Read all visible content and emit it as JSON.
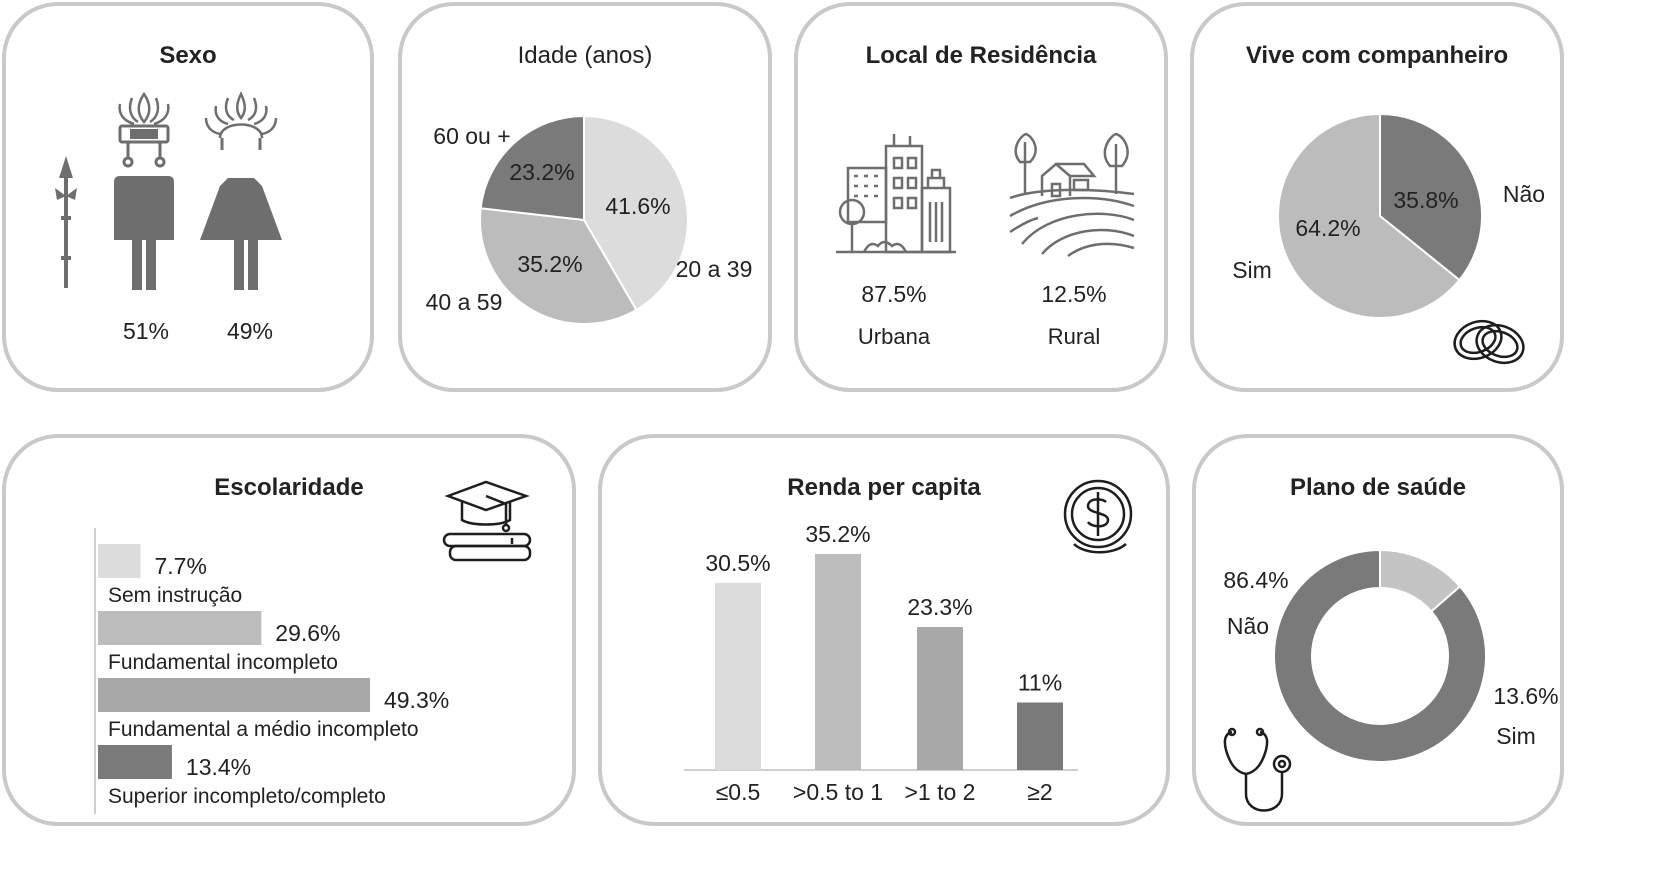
{
  "sexo": {
    "title": "Sexo",
    "men_pct": "51%",
    "women_pct": "49%",
    "chart_data": {
      "type": "table",
      "title": "Sexo",
      "categories": [
        "Men",
        "Women"
      ],
      "values": [
        51,
        49
      ]
    }
  },
  "idade": {
    "title": "Idade (anos)",
    "chart_data": {
      "type": "pie",
      "title": "Idade (anos)",
      "categories": [
        "20 a 39",
        "40 a 59",
        "60 ou +"
      ],
      "values": [
        41.6,
        35.2,
        23.2
      ],
      "value_labels": [
        "41.6%",
        "35.2%",
        "23.2%"
      ],
      "colors": [
        "#dcdcdc",
        "#bcbcbc",
        "#7a7a7a"
      ]
    }
  },
  "residencia": {
    "title": "Local de Residência",
    "chart_data": {
      "type": "table",
      "title": "Local de Residência",
      "categories": [
        "Urbana",
        "Rural"
      ],
      "values": [
        87.5,
        12.5
      ],
      "value_labels": [
        "87.5%",
        "12.5%"
      ]
    }
  },
  "companheiro": {
    "title": "Vive com companheiro",
    "chart_data": {
      "type": "pie",
      "title": "Vive com companheiro",
      "categories": [
        "Não",
        "Sim"
      ],
      "values": [
        35.8,
        64.2
      ],
      "value_labels": [
        "35.8%",
        "64.2%"
      ],
      "colors": [
        "#7a7a7a",
        "#bcbcbc"
      ]
    }
  },
  "escolaridade": {
    "title": "Escolaridade",
    "chart_data": {
      "type": "bar",
      "orientation": "horizontal",
      "title": "Escolaridade",
      "categories": [
        "Sem instrução",
        "Fundamental incompleto",
        "Fundamental  a médio incompleto",
        "Superior incompleto/completo"
      ],
      "values": [
        7.7,
        29.6,
        49.3,
        13.4
      ],
      "value_labels": [
        "7.7%",
        "29.6%",
        "49.3%",
        "13.4%"
      ],
      "colors": [
        "#dcdcdc",
        "#bdbdbd",
        "#a8a8a8",
        "#7a7a7a"
      ],
      "xlim": [
        0,
        60
      ]
    }
  },
  "renda": {
    "title": "Renda per capita",
    "chart_data": {
      "type": "bar",
      "title": "Renda per capita",
      "categories": [
        "≤0.5",
        ">0.5 to 1",
        ">1 to 2",
        "≥2"
      ],
      "values": [
        30.5,
        35.2,
        23.3,
        11
      ],
      "value_labels": [
        "30.5%",
        "35.2%",
        "23.3%",
        "11%"
      ],
      "colors": [
        "#dcdcdc",
        "#bdbdbd",
        "#a8a8a8",
        "#7a7a7a"
      ],
      "ylim": [
        0,
        40
      ]
    }
  },
  "plano": {
    "title": "Plano de saúde",
    "chart_data": {
      "type": "pie",
      "donut": true,
      "title": "Plano de saúde",
      "categories": [
        "Não",
        "Sim"
      ],
      "values": [
        86.4,
        13.6
      ],
      "value_labels": [
        "86.4%",
        "13.6%"
      ],
      "colors": [
        "#7a7a7a",
        "#c4c4c4"
      ]
    }
  },
  "icons": [
    "spear-icon",
    "indigenous-man-icon",
    "indigenous-woman-icon",
    "city-buildings-icon",
    "rural-farm-icon",
    "wedding-rings-icon",
    "graduation-cap-books-icon",
    "dollar-coins-icon",
    "stethoscope-icon"
  ]
}
